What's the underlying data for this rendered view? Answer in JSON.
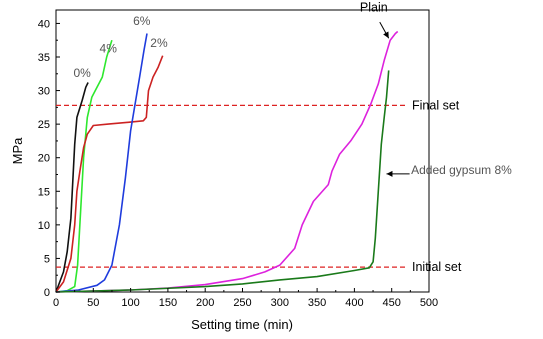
{
  "chart_data": {
    "type": "line",
    "xlabel": "Setting time (min)",
    "ylabel": "MPa",
    "xlim": [
      0,
      500
    ],
    "ylim": [
      0,
      42
    ],
    "x_ticks": [
      "0",
      "50",
      "100",
      "150",
      "200",
      "250",
      "300",
      "350",
      "400",
      "450",
      "500"
    ],
    "y_ticks": [
      "0",
      "5",
      "10",
      "15",
      "20",
      "25",
      "30",
      "35",
      "40"
    ],
    "grid": false,
    "series": [
      {
        "name": "0%",
        "color": "#111111",
        "points": [
          [
            0,
            0
          ],
          [
            10,
            3
          ],
          [
            15,
            6
          ],
          [
            20,
            11
          ],
          [
            25,
            22
          ],
          [
            28,
            26
          ],
          [
            35,
            28.5
          ],
          [
            40,
            30.5
          ],
          [
            43,
            31.2
          ]
        ],
        "label_at": [
          35,
          32
        ]
      },
      {
        "name": "4%",
        "color": "#2ee82e",
        "points": [
          [
            0,
            0
          ],
          [
            15,
            0.2
          ],
          [
            25,
            0.8
          ],
          [
            29,
            4
          ],
          [
            33,
            12
          ],
          [
            37,
            20
          ],
          [
            42,
            26
          ],
          [
            48,
            29
          ],
          [
            55,
            30.5
          ],
          [
            62,
            32
          ],
          [
            68,
            35
          ],
          [
            75,
            37.5
          ]
        ],
        "label_at": [
          70,
          35.7
        ]
      },
      {
        "name": "2%",
        "color": "#cc2222",
        "points": [
          [
            0,
            0
          ],
          [
            10,
            1.5
          ],
          [
            20,
            5
          ],
          [
            25,
            10
          ],
          [
            28,
            15
          ],
          [
            32,
            18
          ],
          [
            37,
            21.5
          ],
          [
            42,
            23.5
          ],
          [
            50,
            24.8
          ],
          [
            70,
            25
          ],
          [
            100,
            25.3
          ],
          [
            117,
            25.5
          ],
          [
            121,
            26
          ],
          [
            124,
            30
          ],
          [
            130,
            32
          ],
          [
            137,
            33.5
          ],
          [
            143,
            35.2
          ]
        ],
        "label_at": [
          138,
          36.5
        ]
      },
      {
        "name": "6%",
        "color": "#1f3cdd",
        "points": [
          [
            0,
            0
          ],
          [
            30,
            0.3
          ],
          [
            55,
            1
          ],
          [
            65,
            1.8
          ],
          [
            75,
            4
          ],
          [
            85,
            10
          ],
          [
            93,
            17
          ],
          [
            100,
            24
          ],
          [
            106,
            28
          ],
          [
            112,
            32
          ],
          [
            118,
            36
          ],
          [
            122,
            38.5
          ]
        ],
        "label_at": [
          115,
          39.8
        ]
      },
      {
        "name": "Plain",
        "color": "#dd22dd",
        "points": [
          [
            0,
            0
          ],
          [
            100,
            0.3
          ],
          [
            150,
            0.6
          ],
          [
            200,
            1.1
          ],
          [
            250,
            2
          ],
          [
            280,
            3
          ],
          [
            300,
            4
          ],
          [
            320,
            6.5
          ],
          [
            330,
            10
          ],
          [
            345,
            13.5
          ],
          [
            365,
            16
          ],
          [
            370,
            18
          ],
          [
            380,
            20.5
          ],
          [
            395,
            22.5
          ],
          [
            410,
            25
          ],
          [
            422,
            28
          ],
          [
            432,
            31
          ],
          [
            440,
            34.5
          ],
          [
            448,
            37.5
          ],
          [
            455,
            38.5
          ],
          [
            458,
            38.8
          ]
        ],
        "label_at": [
          426,
          41.8
        ]
      },
      {
        "name": "Added gypsum 8%",
        "color": "#1a7a1a",
        "points": [
          [
            0,
            0
          ],
          [
            100,
            0.3
          ],
          [
            200,
            0.8
          ],
          [
            250,
            1.2
          ],
          [
            300,
            1.8
          ],
          [
            350,
            2.3
          ],
          [
            400,
            3.2
          ],
          [
            420,
            3.6
          ],
          [
            425,
            4.5
          ],
          [
            428,
            8
          ],
          [
            432,
            15
          ],
          [
            436,
            22
          ],
          [
            440,
            26
          ],
          [
            443,
            29
          ],
          [
            446,
            33
          ]
        ],
        "label_at": [
          476,
          17.6
        ]
      }
    ],
    "reference_lines": [
      {
        "label": "Final set",
        "y": 27.8,
        "color": "#dd2222"
      },
      {
        "label": "Initial set",
        "y": 3.7,
        "color": "#dd2222"
      }
    ]
  }
}
